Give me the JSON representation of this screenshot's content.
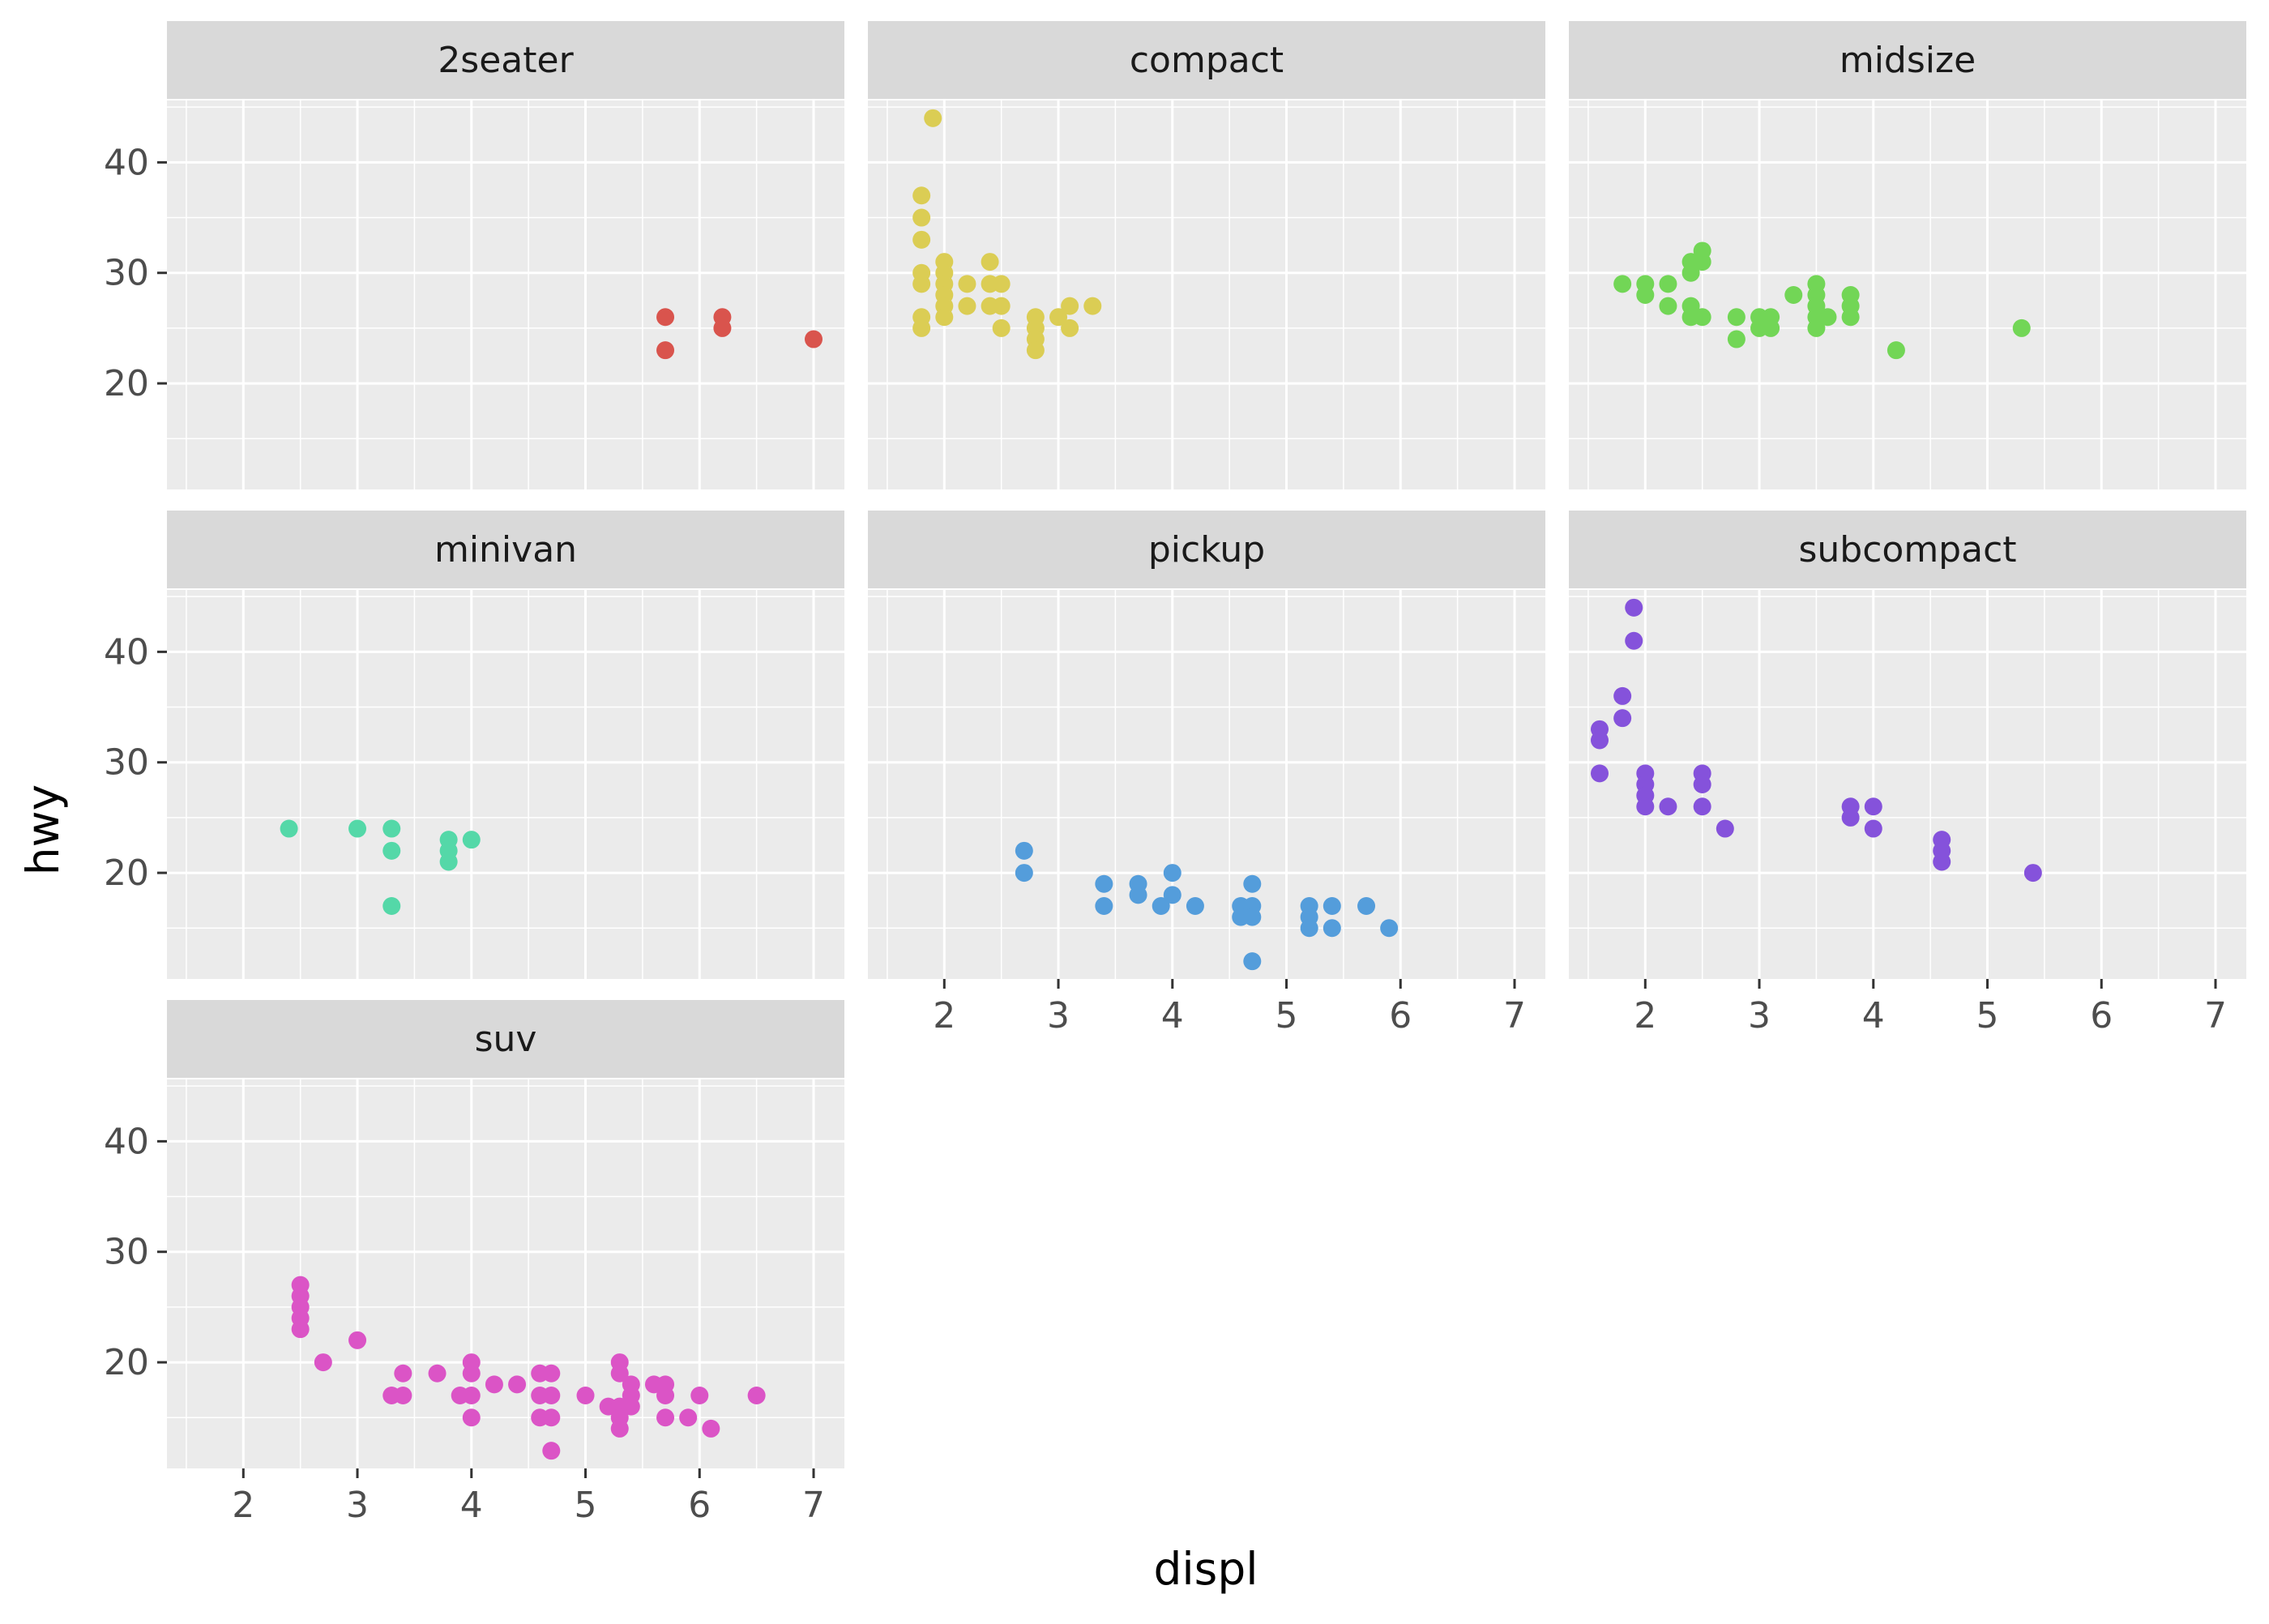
{
  "chart_data": {
    "type": "scatter",
    "title": "",
    "xlabel": "displ",
    "ylabel": "hwy",
    "xlim": [
      1.33,
      7.27
    ],
    "ylim": [
      10.4,
      45.6
    ],
    "x_ticks": [
      2,
      3,
      4,
      5,
      6,
      7
    ],
    "y_ticks": [
      20,
      30,
      40
    ],
    "grid": true,
    "facet_by": "class",
    "colors": {
      "panel_background": "#ebebeb",
      "strip_background": "#d9d9d9",
      "grid": "#ffffff"
    },
    "panels": [
      {
        "name": "2seater",
        "color": "#d9544d",
        "points": [
          [
            5.7,
            26
          ],
          [
            5.7,
            23
          ],
          [
            6.2,
            26
          ],
          [
            6.2,
            25
          ],
          [
            7.0,
            24
          ]
        ]
      },
      {
        "name": "compact",
        "color": "#dbcd54",
        "points": [
          [
            1.9,
            44
          ],
          [
            1.8,
            37
          ],
          [
            1.8,
            35
          ],
          [
            1.8,
            33
          ],
          [
            1.8,
            30
          ],
          [
            1.8,
            29
          ],
          [
            1.8,
            26
          ],
          [
            1.8,
            25
          ],
          [
            2.0,
            31
          ],
          [
            2.0,
            30
          ],
          [
            2.0,
            29
          ],
          [
            2.0,
            28
          ],
          [
            2.0,
            27
          ],
          [
            2.0,
            26
          ],
          [
            2.2,
            29
          ],
          [
            2.2,
            27
          ],
          [
            2.4,
            31
          ],
          [
            2.4,
            29
          ],
          [
            2.4,
            27
          ],
          [
            2.5,
            29
          ],
          [
            2.5,
            27
          ],
          [
            2.5,
            25
          ],
          [
            2.8,
            26
          ],
          [
            2.8,
            25
          ],
          [
            2.8,
            24
          ],
          [
            2.8,
            23
          ],
          [
            3.0,
            26
          ],
          [
            3.1,
            27
          ],
          [
            3.1,
            25
          ],
          [
            3.3,
            27
          ]
        ]
      },
      {
        "name": "midsize",
        "color": "#72d656",
        "points": [
          [
            1.8,
            29
          ],
          [
            2.0,
            29
          ],
          [
            2.0,
            28
          ],
          [
            2.2,
            29
          ],
          [
            2.2,
            27
          ],
          [
            2.4,
            31
          ],
          [
            2.4,
            30
          ],
          [
            2.4,
            27
          ],
          [
            2.4,
            26
          ],
          [
            2.5,
            32
          ],
          [
            2.5,
            31
          ],
          [
            2.5,
            26
          ],
          [
            2.8,
            26
          ],
          [
            2.8,
            24
          ],
          [
            3.0,
            26
          ],
          [
            3.0,
            25
          ],
          [
            3.1,
            26
          ],
          [
            3.1,
            25
          ],
          [
            3.3,
            28
          ],
          [
            3.5,
            29
          ],
          [
            3.5,
            28
          ],
          [
            3.5,
            27
          ],
          [
            3.5,
            26
          ],
          [
            3.5,
            25
          ],
          [
            3.6,
            26
          ],
          [
            3.8,
            28
          ],
          [
            3.8,
            27
          ],
          [
            3.8,
            26
          ],
          [
            4.2,
            23
          ],
          [
            5.3,
            25
          ]
        ]
      },
      {
        "name": "minivan",
        "color": "#54d8a8",
        "points": [
          [
            2.4,
            24
          ],
          [
            3.0,
            24
          ],
          [
            3.3,
            24
          ],
          [
            3.3,
            22
          ],
          [
            3.3,
            17
          ],
          [
            3.8,
            23
          ],
          [
            3.8,
            22
          ],
          [
            3.8,
            21
          ],
          [
            4.0,
            23
          ]
        ]
      },
      {
        "name": "pickup",
        "color": "#549ddb",
        "points": [
          [
            2.7,
            22
          ],
          [
            2.7,
            20
          ],
          [
            3.4,
            19
          ],
          [
            3.4,
            17
          ],
          [
            3.7,
            19
          ],
          [
            3.7,
            18
          ],
          [
            3.9,
            17
          ],
          [
            4.0,
            20
          ],
          [
            4.0,
            18
          ],
          [
            4.2,
            17
          ],
          [
            4.6,
            17
          ],
          [
            4.6,
            16
          ],
          [
            4.7,
            19
          ],
          [
            4.7,
            17
          ],
          [
            4.7,
            16
          ],
          [
            4.7,
            12
          ],
          [
            5.2,
            17
          ],
          [
            5.2,
            16
          ],
          [
            5.2,
            15
          ],
          [
            5.4,
            17
          ],
          [
            5.4,
            15
          ],
          [
            5.7,
            17
          ],
          [
            5.9,
            15
          ]
        ]
      },
      {
        "name": "subcompact",
        "color": "#8552db",
        "points": [
          [
            1.6,
            33
          ],
          [
            1.6,
            32
          ],
          [
            1.6,
            29
          ],
          [
            1.8,
            36
          ],
          [
            1.8,
            34
          ],
          [
            1.9,
            44
          ],
          [
            1.9,
            41
          ],
          [
            2.0,
            29
          ],
          [
            2.0,
            28
          ],
          [
            2.0,
            27
          ],
          [
            2.0,
            26
          ],
          [
            2.2,
            26
          ],
          [
            2.5,
            29
          ],
          [
            2.5,
            28
          ],
          [
            2.5,
            26
          ],
          [
            2.7,
            24
          ],
          [
            3.8,
            26
          ],
          [
            3.8,
            25
          ],
          [
            4.0,
            26
          ],
          [
            4.0,
            24
          ],
          [
            4.6,
            23
          ],
          [
            4.6,
            22
          ],
          [
            4.6,
            21
          ],
          [
            5.4,
            20
          ]
        ]
      },
      {
        "name": "suv",
        "color": "#db54c6",
        "points": [
          [
            2.5,
            27
          ],
          [
            2.5,
            26
          ],
          [
            2.5,
            25
          ],
          [
            2.5,
            24
          ],
          [
            2.5,
            23
          ],
          [
            2.7,
            20
          ],
          [
            3.0,
            22
          ],
          [
            3.3,
            17
          ],
          [
            3.4,
            19
          ],
          [
            3.4,
            17
          ],
          [
            3.7,
            19
          ],
          [
            3.9,
            17
          ],
          [
            4.0,
            20
          ],
          [
            4.0,
            19
          ],
          [
            4.0,
            17
          ],
          [
            4.0,
            15
          ],
          [
            4.2,
            18
          ],
          [
            4.4,
            18
          ],
          [
            4.6,
            19
          ],
          [
            4.6,
            17
          ],
          [
            4.6,
            15
          ],
          [
            4.7,
            19
          ],
          [
            4.7,
            17
          ],
          [
            4.7,
            15
          ],
          [
            4.7,
            12
          ],
          [
            5.0,
            17
          ],
          [
            5.2,
            16
          ],
          [
            5.3,
            20
          ],
          [
            5.3,
            19
          ],
          [
            5.3,
            16
          ],
          [
            5.3,
            15
          ],
          [
            5.3,
            14
          ],
          [
            5.4,
            18
          ],
          [
            5.4,
            17
          ],
          [
            5.4,
            16
          ],
          [
            5.6,
            18
          ],
          [
            5.7,
            18
          ],
          [
            5.7,
            17
          ],
          [
            5.7,
            15
          ],
          [
            5.9,
            15
          ],
          [
            6.0,
            17
          ],
          [
            6.1,
            14
          ],
          [
            6.5,
            17
          ]
        ]
      }
    ]
  }
}
